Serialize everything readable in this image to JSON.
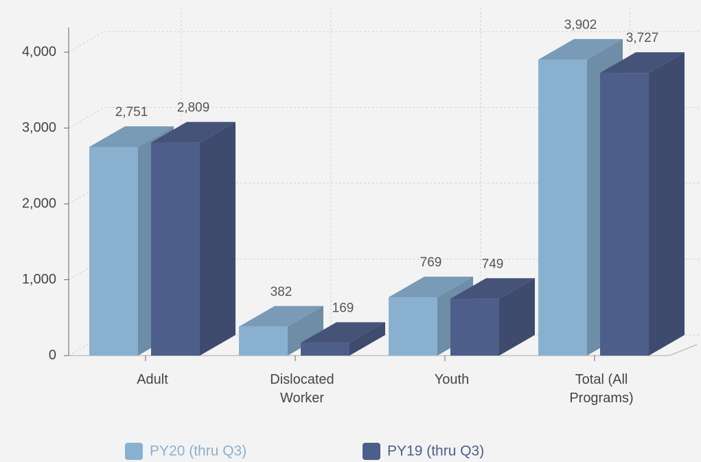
{
  "chart_data": {
    "type": "bar3d",
    "categories": [
      "Adult",
      "Dislocated Worker",
      "Youth",
      "Total (All Programs)"
    ],
    "series": [
      {
        "name": "PY20 (thru Q3)",
        "color": "#8ab0d0",
        "values": [
          2751,
          382,
          769,
          3902
        ],
        "value_labels": [
          "2,751",
          "382",
          "769",
          "3,902"
        ]
      },
      {
        "name": "PY19 (thru Q3)",
        "color": "#4e5e8a",
        "values": [
          2809,
          169,
          749,
          3727
        ],
        "value_labels": [
          "2,809",
          "169",
          "749",
          "3,727"
        ]
      }
    ],
    "ylim": [
      0,
      4000
    ],
    "yticks": [
      0,
      {
        "value": 1000,
        "label": "1,000"
      },
      {
        "value": 2000,
        "label": "2,000"
      },
      {
        "value": 3000,
        "label": "3,000"
      },
      {
        "value": 4000,
        "label": "4,000"
      }
    ],
    "grid": true
  }
}
